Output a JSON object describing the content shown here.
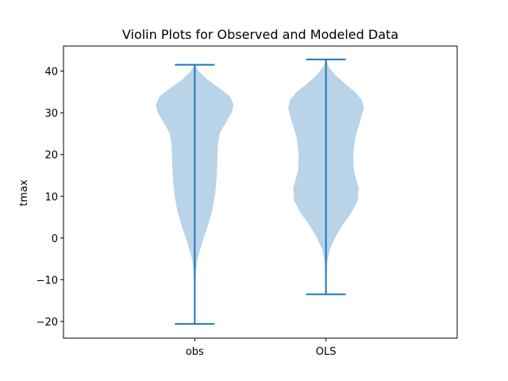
{
  "chart_data": {
    "type": "violin",
    "title": "Violin Plots for Observed and Modeled Data",
    "xlabel": "",
    "ylabel": "tmax",
    "ylim": [
      -24,
      46
    ],
    "yticks": [
      -20,
      -10,
      0,
      10,
      20,
      30,
      40
    ],
    "grid": false,
    "legend": "none",
    "colors": {
      "body": "#b9d3e8",
      "lines": "#1f77b4"
    },
    "categories": [
      "obs",
      "OLS"
    ],
    "series": [
      {
        "category": "obs",
        "min": -20.6,
        "max": 41.5,
        "profile": [
          [
            -20.6,
            0.0
          ],
          [
            -12,
            0.01
          ],
          [
            -8,
            0.03
          ],
          [
            -5,
            0.07
          ],
          [
            -3,
            0.13
          ],
          [
            0,
            0.23
          ],
          [
            3,
            0.34
          ],
          [
            7,
            0.46
          ],
          [
            11,
            0.53
          ],
          [
            14,
            0.56
          ],
          [
            18,
            0.58
          ],
          [
            22,
            0.59
          ],
          [
            25,
            0.64
          ],
          [
            28,
            0.82
          ],
          [
            30,
            0.95
          ],
          [
            32,
            1.0
          ],
          [
            34,
            0.9
          ],
          [
            36,
            0.62
          ],
          [
            38,
            0.32
          ],
          [
            40,
            0.1
          ],
          [
            41.5,
            0.0
          ]
        ]
      },
      {
        "category": "OLS",
        "min": -13.5,
        "max": 42.8,
        "profile": [
          [
            -13.5,
            0.0
          ],
          [
            -9,
            0.01
          ],
          [
            -6,
            0.03
          ],
          [
            -3,
            0.09
          ],
          [
            0,
            0.23
          ],
          [
            3,
            0.42
          ],
          [
            6,
            0.65
          ],
          [
            9,
            0.82
          ],
          [
            12,
            0.84
          ],
          [
            16,
            0.72
          ],
          [
            20,
            0.7
          ],
          [
            24,
            0.75
          ],
          [
            28,
            0.88
          ],
          [
            31,
            0.97
          ],
          [
            33,
            0.93
          ],
          [
            35,
            0.75
          ],
          [
            37,
            0.48
          ],
          [
            39,
            0.24
          ],
          [
            41,
            0.07
          ],
          [
            42.8,
            0.0
          ]
        ]
      }
    ]
  }
}
